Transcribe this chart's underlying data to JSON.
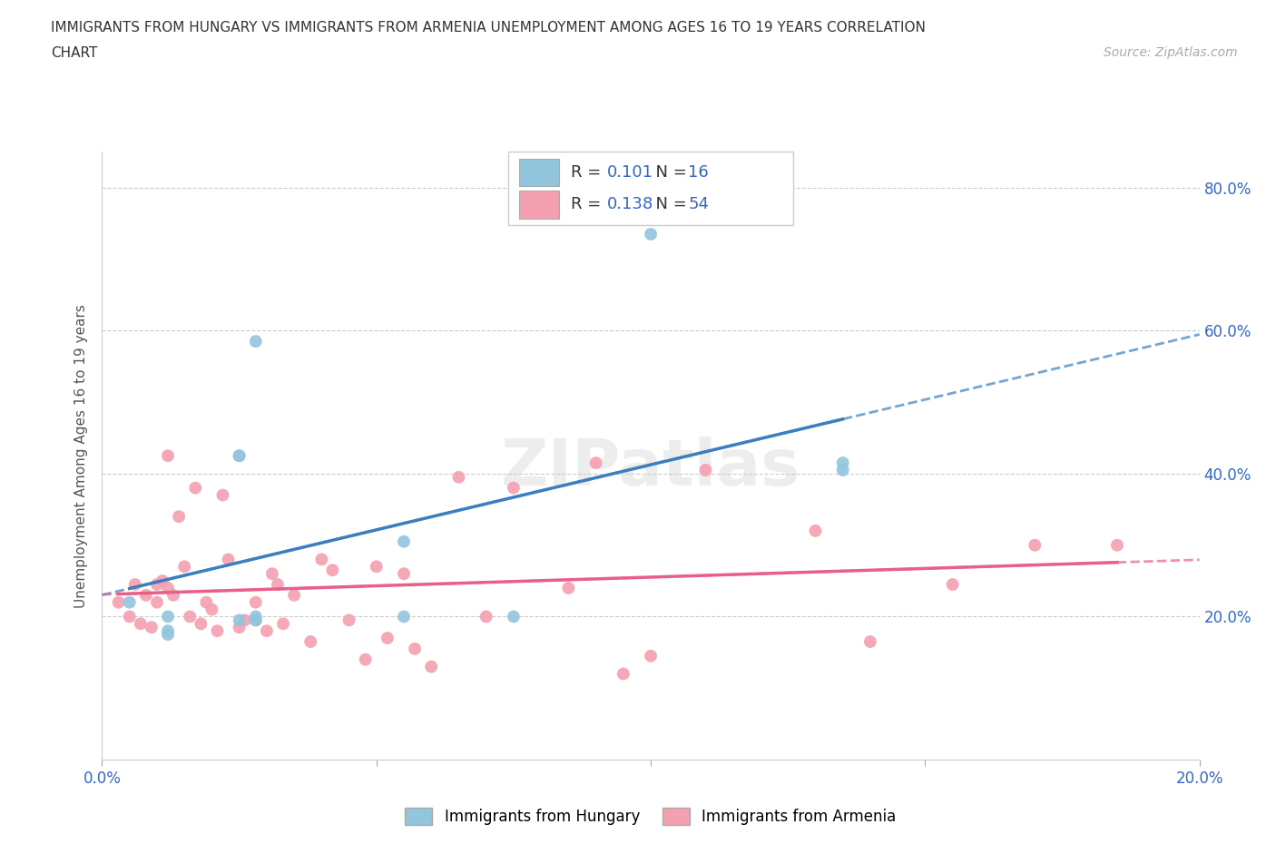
{
  "title_line1": "IMMIGRANTS FROM HUNGARY VS IMMIGRANTS FROM ARMENIA UNEMPLOYMENT AMONG AGES 16 TO 19 YEARS CORRELATION",
  "title_line2": "CHART",
  "source": "Source: ZipAtlas.com",
  "ylabel": "Unemployment Among Ages 16 to 19 years",
  "xlim": [
    0.0,
    0.2
  ],
  "ylim": [
    0.0,
    0.85
  ],
  "R_hungary": 0.101,
  "N_hungary": 16,
  "R_armenia": 0.138,
  "N_armenia": 54,
  "color_hungary": "#92C5DE",
  "color_armenia": "#F4A0B0",
  "color_hungary_line": "#3A7FBF",
  "color_armenia_line": "#E8608A",
  "color_blue_text": "#3366CC",
  "hungary_x": [
    0.005,
    0.012,
    0.012,
    0.012,
    0.025,
    0.025,
    0.025,
    0.028,
    0.028,
    0.028,
    0.055,
    0.055,
    0.075,
    0.1,
    0.135,
    0.135
  ],
  "hungary_y": [
    0.22,
    0.2,
    0.18,
    0.175,
    0.195,
    0.425,
    0.425,
    0.195,
    0.2,
    0.585,
    0.305,
    0.2,
    0.2,
    0.735,
    0.415,
    0.405
  ],
  "armenia_x": [
    0.003,
    0.005,
    0.006,
    0.007,
    0.008,
    0.009,
    0.01,
    0.01,
    0.011,
    0.012,
    0.012,
    0.013,
    0.014,
    0.015,
    0.016,
    0.017,
    0.018,
    0.019,
    0.02,
    0.021,
    0.022,
    0.023,
    0.025,
    0.026,
    0.028,
    0.028,
    0.03,
    0.031,
    0.032,
    0.033,
    0.035,
    0.038,
    0.04,
    0.042,
    0.045,
    0.048,
    0.05,
    0.052,
    0.055,
    0.057,
    0.06,
    0.065,
    0.07,
    0.075,
    0.085,
    0.09,
    0.095,
    0.1,
    0.11,
    0.13,
    0.14,
    0.155,
    0.17,
    0.185
  ],
  "armenia_y": [
    0.22,
    0.2,
    0.245,
    0.19,
    0.23,
    0.185,
    0.245,
    0.22,
    0.25,
    0.24,
    0.425,
    0.23,
    0.34,
    0.27,
    0.2,
    0.38,
    0.19,
    0.22,
    0.21,
    0.18,
    0.37,
    0.28,
    0.185,
    0.195,
    0.22,
    0.195,
    0.18,
    0.26,
    0.245,
    0.19,
    0.23,
    0.165,
    0.28,
    0.265,
    0.195,
    0.14,
    0.27,
    0.17,
    0.26,
    0.155,
    0.13,
    0.395,
    0.2,
    0.38,
    0.24,
    0.415,
    0.12,
    0.145,
    0.405,
    0.32,
    0.165,
    0.245,
    0.3,
    0.3
  ],
  "watermark": "ZIPatlas",
  "background_color": "#ffffff",
  "grid_color": "#cccccc"
}
